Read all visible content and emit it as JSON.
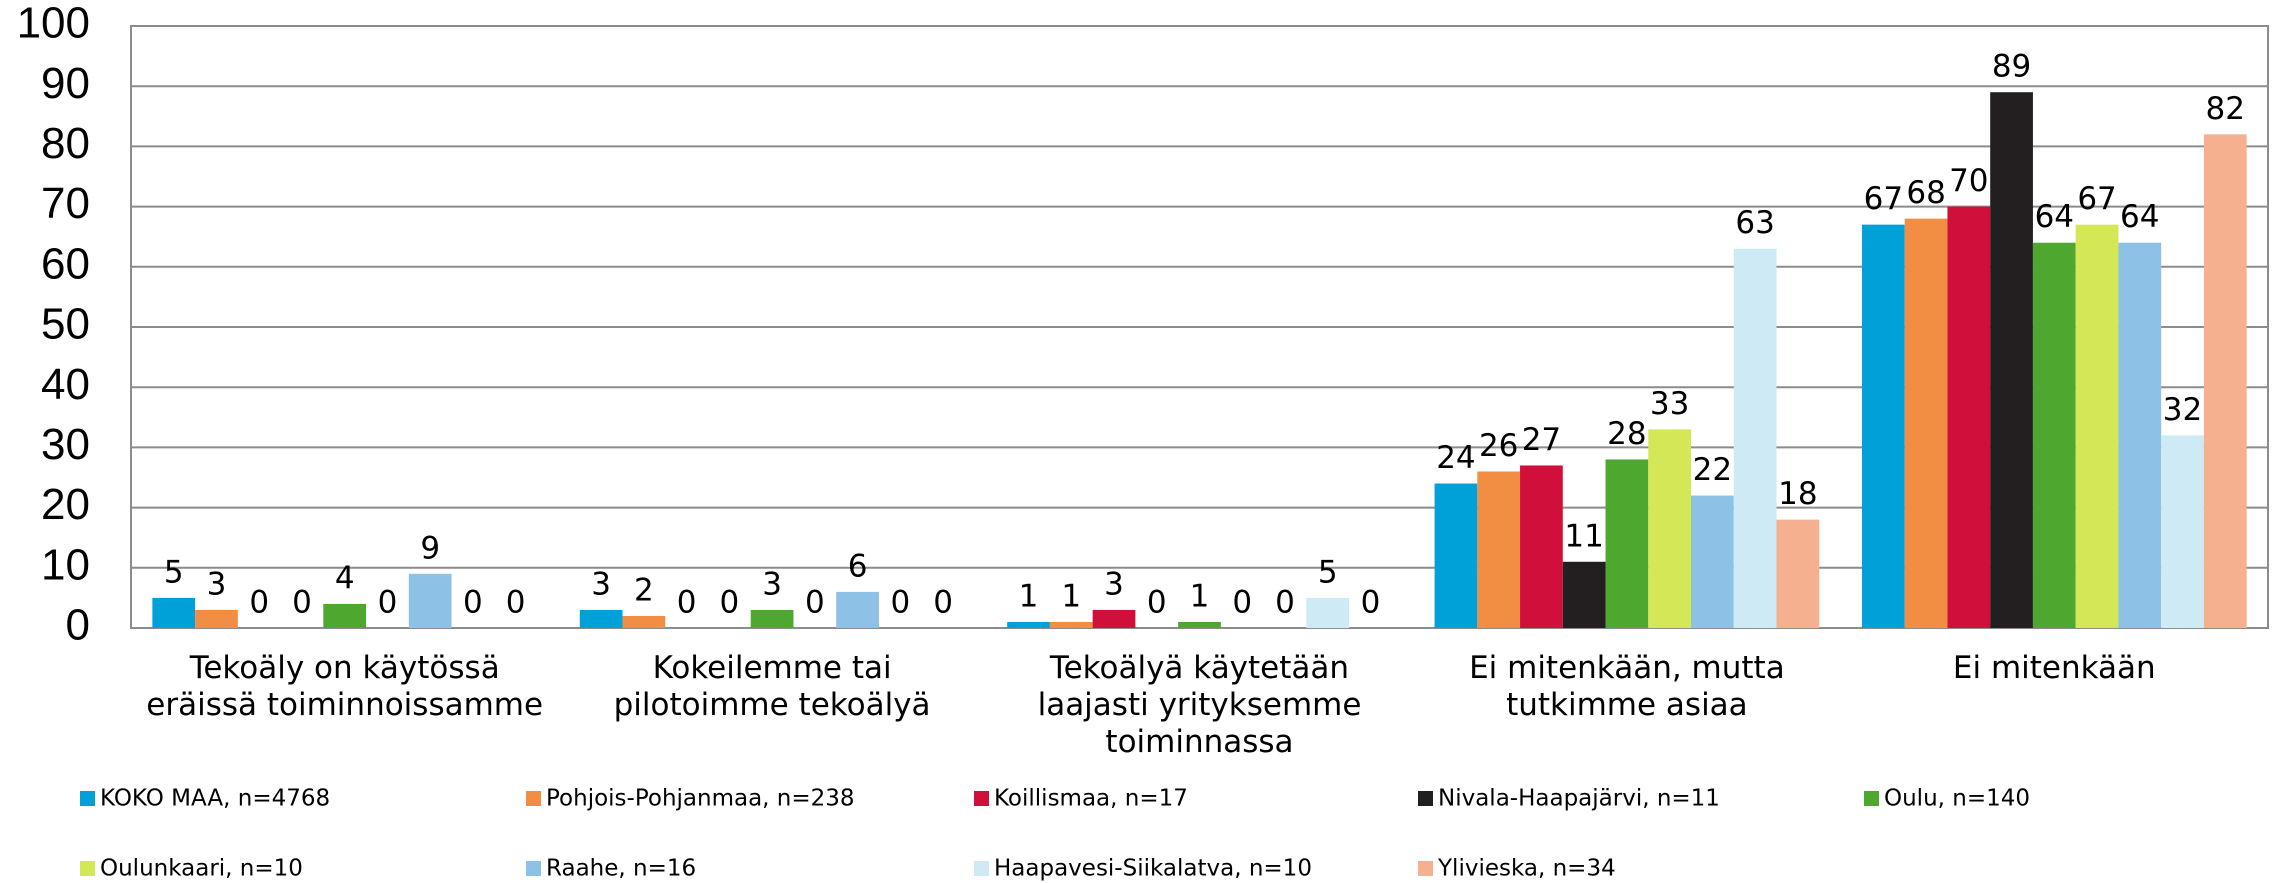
{
  "chart_data": {
    "type": "bar",
    "categories": [
      "Tekoäly on käytössä eräissä toiminnoissamme",
      "Kokeilemme tai pilotoimme tekoälyä",
      "Tekoälyä käytetään laajasti yrityksemme toiminnassa",
      "Ei mitenkään, mutta tutkimme asiaa",
      "Ei mitenkään"
    ],
    "series": [
      {
        "name": "KOKO MAA, n=4768",
        "color": "#00a0d8",
        "values": [
          5,
          3,
          1,
          24,
          67
        ]
      },
      {
        "name": "Pohjois-Pohjanmaa, n=238",
        "color": "#f28e43",
        "values": [
          3,
          2,
          1,
          26,
          68
        ]
      },
      {
        "name": "Koillismaa, n=17",
        "color": "#d0103a",
        "values": [
          0,
          0,
          3,
          27,
          70
        ]
      },
      {
        "name": "Nivala-Haapajärvi, n=11",
        "color": "#231f20",
        "values": [
          0,
          0,
          0,
          11,
          89
        ]
      },
      {
        "name": "Oulu, n=140",
        "color": "#4ea72e",
        "values": [
          4,
          3,
          1,
          28,
          64
        ]
      },
      {
        "name": "Oulunkaari, n=10",
        "color": "#d4e757",
        "values": [
          0,
          0,
          0,
          33,
          67
        ]
      },
      {
        "name": "Raahe, n=16",
        "color": "#8dc1e6",
        "values": [
          9,
          6,
          0,
          22,
          64
        ]
      },
      {
        "name": "Haapavesi-Siikalatva, n=10",
        "color": "#cdeaf5",
        "values": [
          0,
          0,
          5,
          63,
          32
        ]
      },
      {
        "name": "Ylivieska, n=34",
        "color": "#f4b08f",
        "values": [
          0,
          0,
          0,
          18,
          82
        ]
      }
    ],
    "ylim": [
      0,
      100
    ],
    "yticks": [
      0,
      10,
      20,
      30,
      40,
      50,
      60,
      70,
      80,
      90,
      100
    ],
    "grid": true
  }
}
